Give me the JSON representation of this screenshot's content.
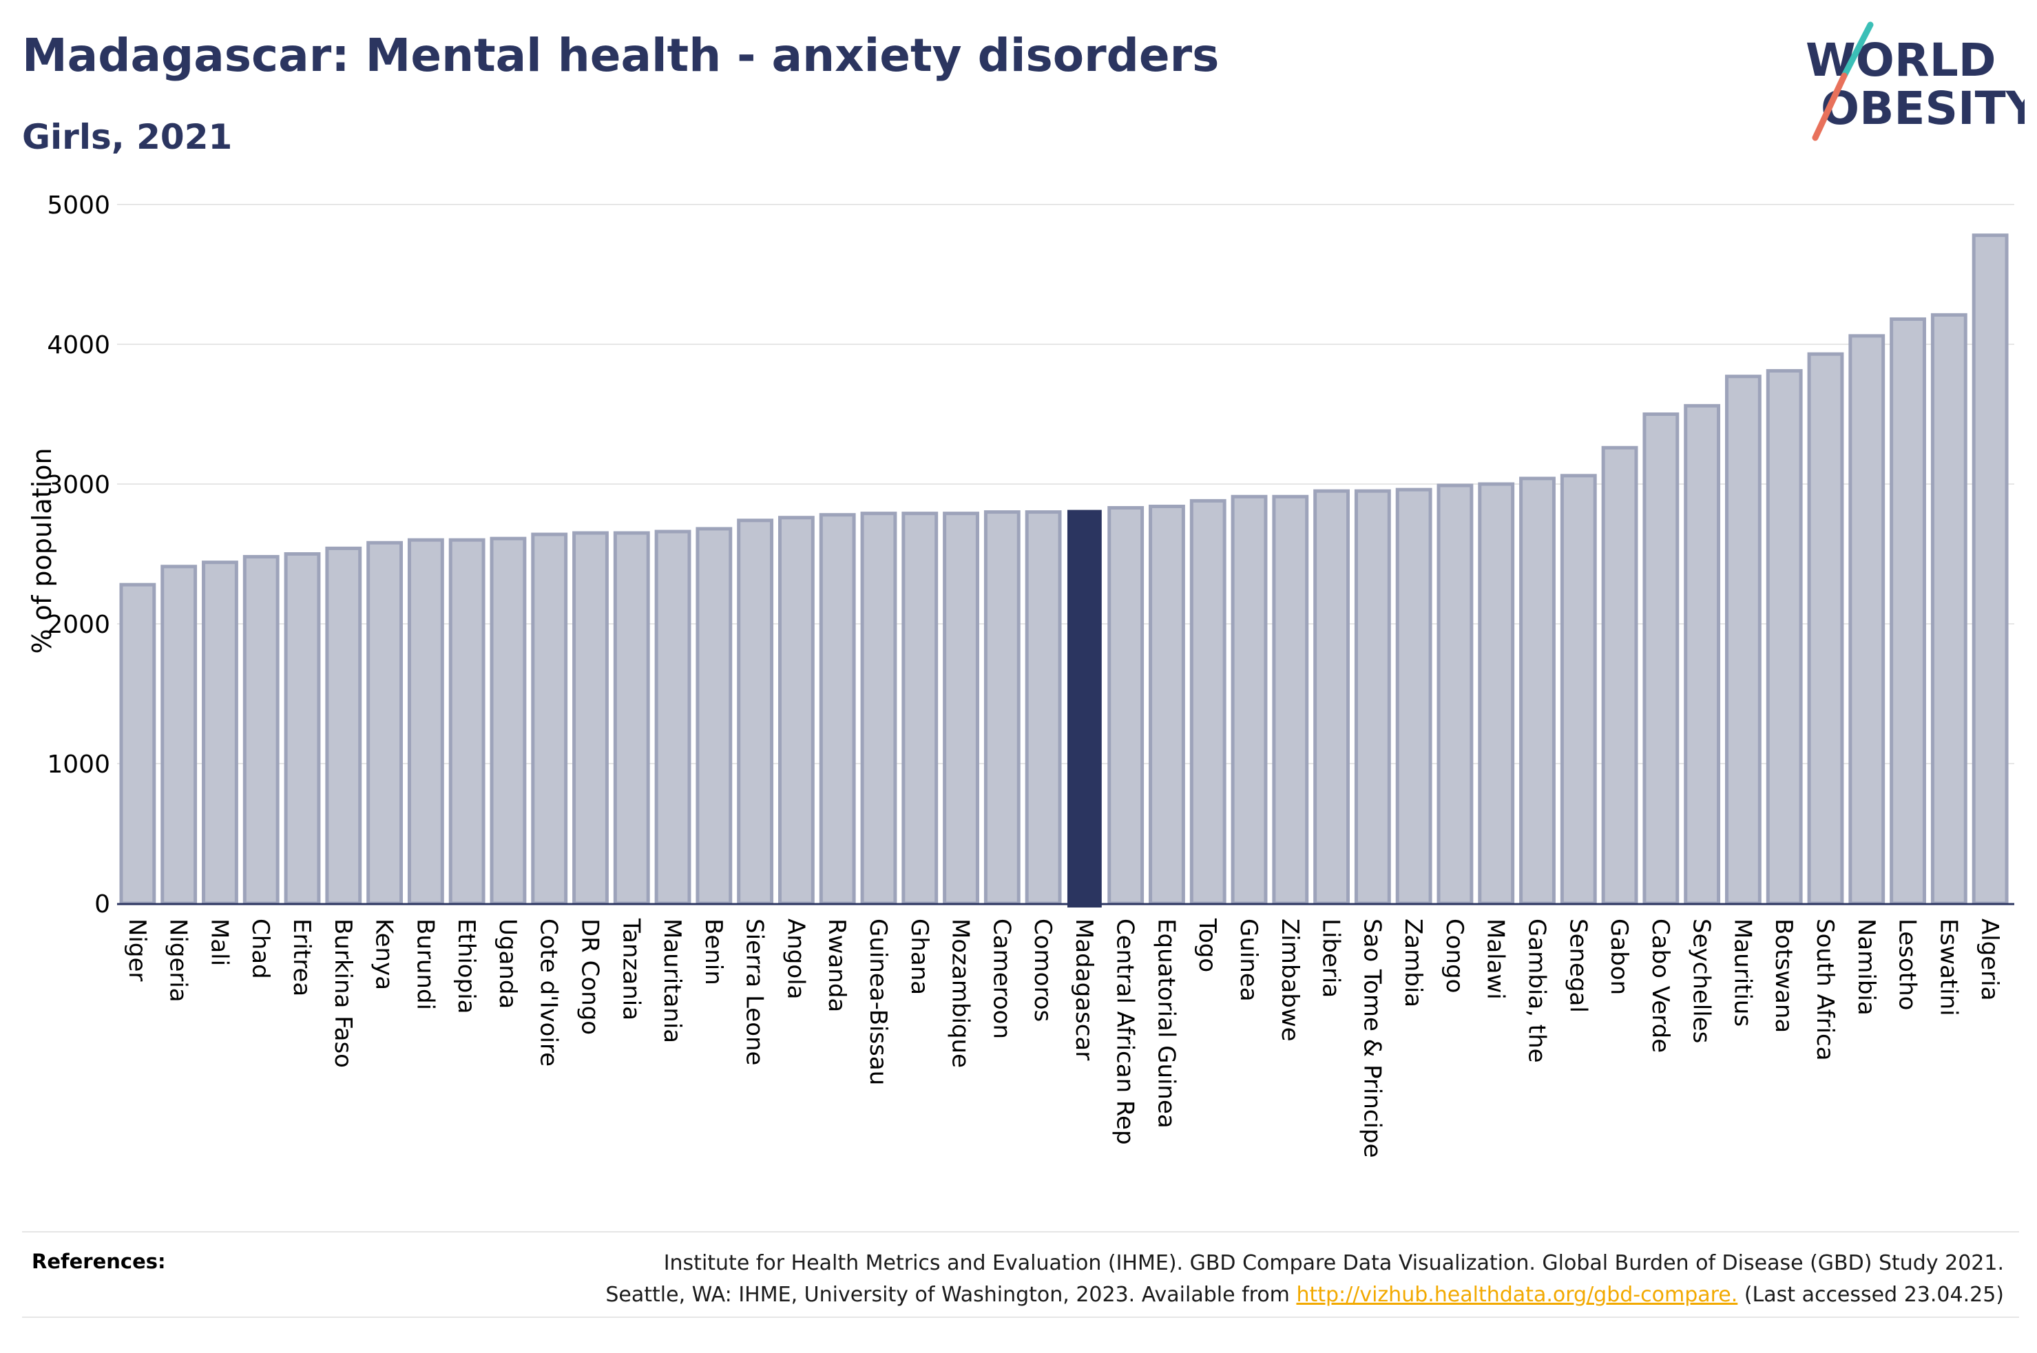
{
  "header": {
    "title": "Madagascar: Mental health - anxiety disorders",
    "subtitle": "Girls, 2021"
  },
  "logo": {
    "line1": "WORLD",
    "line2": "OBESITY",
    "colors": {
      "text": "#2b3560",
      "slash_top": "#3bbfb7",
      "slash_bottom": "#e8715b"
    }
  },
  "chart_data": {
    "type": "bar",
    "title": "Madagascar: Mental health - anxiety disorders",
    "subtitle": "Girls, 2021",
    "xlabel": "",
    "ylabel": "% of population",
    "ylim": [
      0,
      5000
    ],
    "yticks": [
      0,
      1000,
      2000,
      3000,
      4000,
      5000
    ],
    "grid": true,
    "highlight": "Madagascar",
    "colors": {
      "bar": "#c0c4d1",
      "bar_edge": "#9da3ba",
      "highlight": "#2b3560",
      "grid": "#e6e6e6",
      "axis": "#2b3560"
    },
    "categories": [
      "Niger",
      "Nigeria",
      "Mali",
      "Chad",
      "Eritrea",
      "Burkina Faso",
      "Kenya",
      "Burundi",
      "Ethiopia",
      "Uganda",
      "Cote d'Ivoire",
      "DR Congo",
      "Tanzania",
      "Mauritania",
      "Benin",
      "Sierra Leone",
      "Angola",
      "Rwanda",
      "Guinea-Bissau",
      "Ghana",
      "Mozambique",
      "Cameroon",
      "Comoros",
      "Madagascar",
      "Central African Rep",
      "Equatorial Guinea",
      "Togo",
      "Guinea",
      "Zimbabwe",
      "Liberia",
      "Sao Tome & Principe",
      "Zambia",
      "Congo",
      "Malawi",
      "Gambia, the",
      "Senegal",
      "Gabon",
      "Cabo Verde",
      "Seychelles",
      "Mauritius",
      "Botswana",
      "South Africa",
      "Namibia",
      "Lesotho",
      "Eswatini",
      "Algeria"
    ],
    "values": [
      2280,
      2410,
      2440,
      2480,
      2500,
      2540,
      2580,
      2600,
      2600,
      2610,
      2640,
      2650,
      2650,
      2660,
      2680,
      2740,
      2760,
      2780,
      2790,
      2790,
      2790,
      2800,
      2800,
      2810,
      2830,
      2840,
      2880,
      2910,
      2910,
      2950,
      2950,
      2960,
      2990,
      3000,
      3040,
      3060,
      3260,
      3500,
      3560,
      3770,
      3810,
      3930,
      4060,
      4180,
      4210,
      4780
    ]
  },
  "references": {
    "label": "References:",
    "line1": "Institute for Health Metrics and Evaluation (IHME). GBD Compare Data Visualization. Global Burden of Disease (GBD) Study 2021.",
    "line2_pre": "Seattle, WA: IHME, University of Washington, 2023. Available from ",
    "link": "http://vizhub.healthdata.org/gbd-compare.",
    "line2_post": " (Last accessed 23.04.25)"
  }
}
